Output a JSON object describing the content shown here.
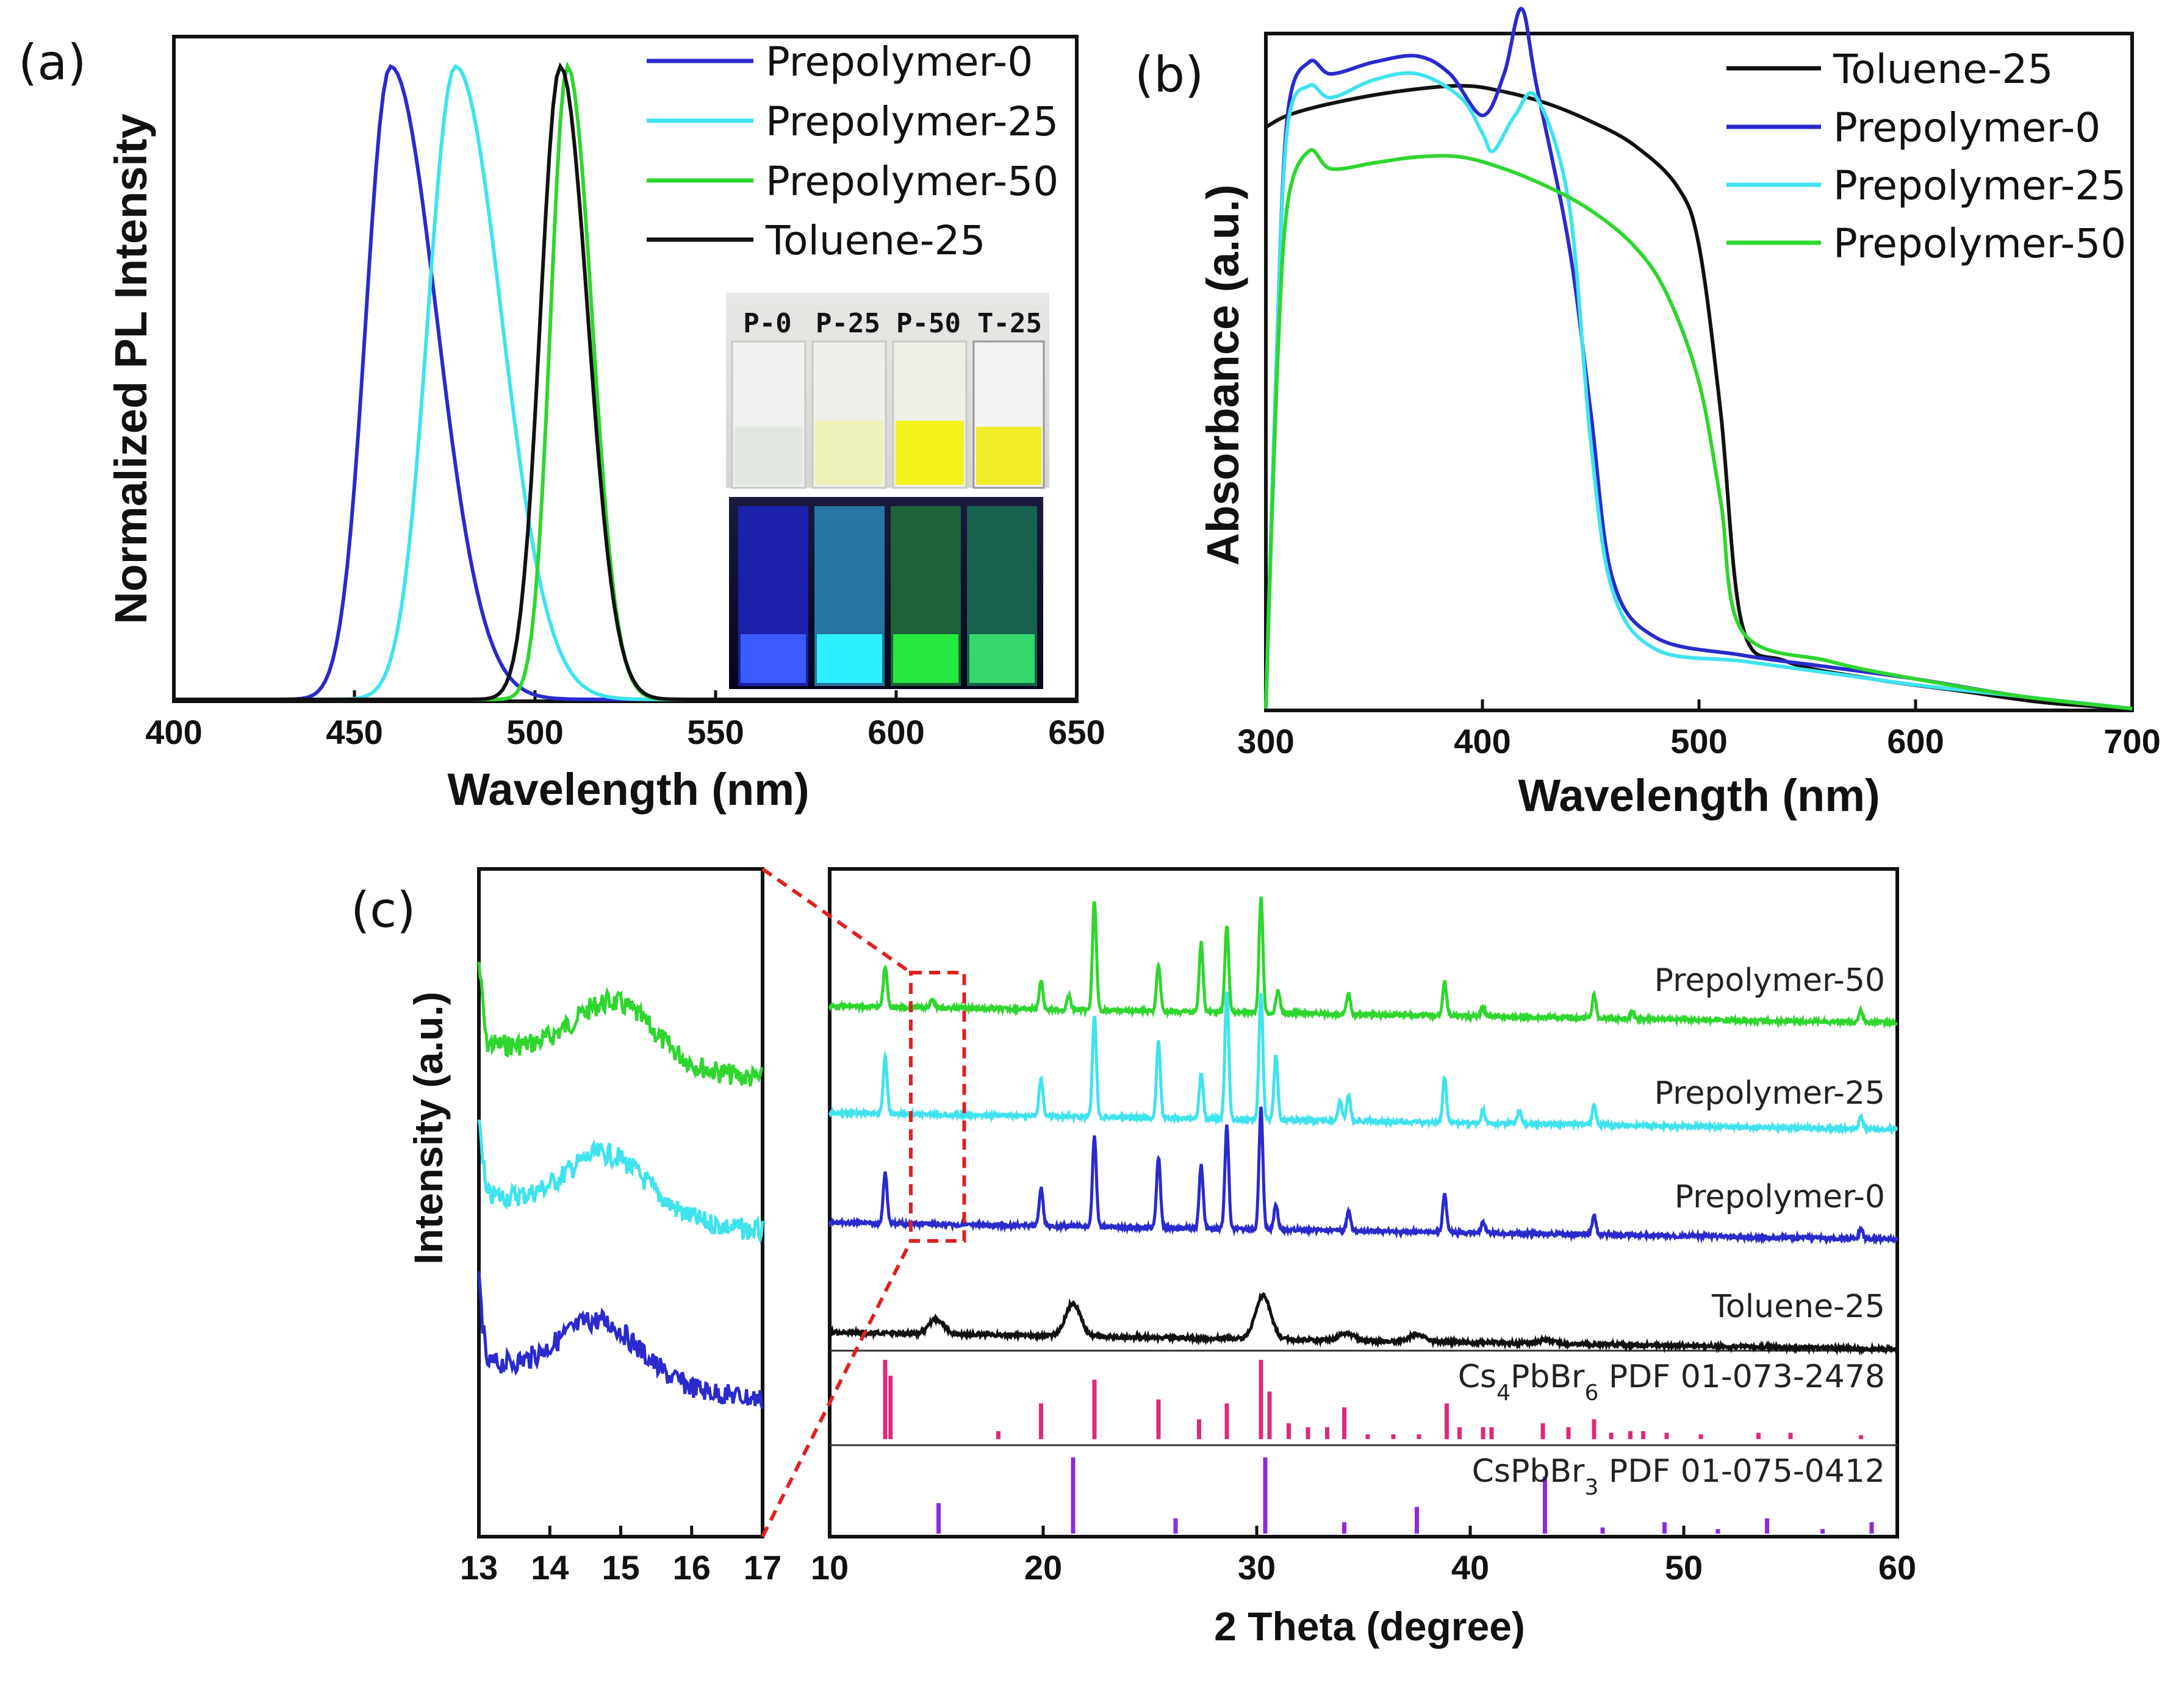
{
  "panel_labels": {
    "a": "(a)",
    "b": "(b)",
    "c": "(c)"
  },
  "colors": {
    "Prepolymer-0": "#2a2acd",
    "Prepolymer-25": "#3fe3ee",
    "Prepolymer-50": "#2ed62e",
    "Toluene-25": "#111111",
    "Cs4PbBr6": "#e0287d",
    "CsPbBr3": "#8a2be2",
    "zoom": "#e02020"
  },
  "chart_data": [
    {
      "id": "a",
      "type": "line",
      "title": "",
      "xlabel": "Wavelength (nm)",
      "ylabel": "Normalized PL Intensity",
      "xlim": [
        400,
        650
      ],
      "ylim": [
        0,
        1.05
      ],
      "xticks": [
        "400",
        "450",
        "500",
        "550",
        "600",
        "650"
      ],
      "series": [
        {
          "name": "Prepolymer-0",
          "peak": 460,
          "fwhm_left": 16,
          "fwhm_right": 30
        },
        {
          "name": "Prepolymer-25",
          "peak": 478,
          "fwhm_left": 18,
          "fwhm_right": 30
        },
        {
          "name": "Prepolymer-50",
          "peak": 509,
          "fwhm_left": 11,
          "fwhm_right": 16
        },
        {
          "name": "Toluene-25",
          "peak": 507,
          "fwhm_left": 13,
          "fwhm_right": 18
        }
      ],
      "legend": [
        "Prepolymer-0",
        "Prepolymer-25",
        "Prepolymer-50",
        "Toluene-25"
      ],
      "inset": {
        "vial_labels": [
          "P-0",
          "P-25",
          "P-50",
          "T-25"
        ]
      }
    },
    {
      "id": "b",
      "type": "line",
      "title": "",
      "xlabel": "Wavelength (nm)",
      "ylabel": "Absorbance (a.u.)",
      "xlim": [
        300,
        700
      ],
      "ylim": [
        0,
        1.1
      ],
      "xticks": [
        "300",
        "400",
        "500",
        "600",
        "700"
      ],
      "series": [
        {
          "name": "Toluene-25",
          "x": [
            300,
            310,
            330,
            360,
            390,
            410,
            430,
            450,
            470,
            490,
            500,
            510,
            520,
            540,
            580,
            620,
            660,
            700
          ],
          "y": [
            0.98,
            1.0,
            1.02,
            1.04,
            1.05,
            1.04,
            1.02,
            0.99,
            0.95,
            0.88,
            0.78,
            0.5,
            0.14,
            0.08,
            0.05,
            0.03,
            0.01,
            0.0
          ]
        },
        {
          "name": "Prepolymer-0",
          "x": [
            300,
            305,
            310,
            320,
            330,
            350,
            370,
            385,
            400,
            410,
            418,
            425,
            440,
            450,
            460,
            480,
            520,
            560,
            600,
            650,
            700
          ],
          "y": [
            0.0,
            0.6,
            1.0,
            1.09,
            1.07,
            1.09,
            1.1,
            1.07,
            1.0,
            1.07,
            1.18,
            1.05,
            0.78,
            0.5,
            0.22,
            0.12,
            0.09,
            0.07,
            0.05,
            0.02,
            0.0
          ]
        },
        {
          "name": "Prepolymer-25",
          "x": [
            300,
            305,
            310,
            320,
            330,
            350,
            370,
            390,
            400,
            405,
            415,
            425,
            440,
            450,
            460,
            480,
            520,
            560,
            600,
            650,
            700
          ],
          "y": [
            0.0,
            0.6,
            0.98,
            1.05,
            1.03,
            1.06,
            1.07,
            1.03,
            0.97,
            0.94,
            1.0,
            1.03,
            0.85,
            0.45,
            0.2,
            0.1,
            0.08,
            0.06,
            0.04,
            0.02,
            0.0
          ]
        },
        {
          "name": "Prepolymer-50",
          "x": [
            300,
            305,
            310,
            320,
            330,
            350,
            370,
            390,
            410,
            430,
            450,
            470,
            485,
            500,
            510,
            520,
            560,
            600,
            650,
            700
          ],
          "y": [
            0.0,
            0.55,
            0.85,
            0.94,
            0.91,
            0.92,
            0.93,
            0.93,
            0.91,
            0.88,
            0.84,
            0.78,
            0.7,
            0.55,
            0.35,
            0.13,
            0.08,
            0.05,
            0.02,
            0.0
          ]
        }
      ],
      "legend": [
        "Toluene-25",
        "Prepolymer-0",
        "Prepolymer-25",
        "Prepolymer-50"
      ]
    },
    {
      "id": "c-zoom",
      "type": "line",
      "title": "",
      "xlabel": "",
      "ylabel": "Intensity (a.u.)",
      "xlim": [
        13,
        17
      ],
      "xticks": [
        "13",
        "14",
        "15",
        "16",
        "17"
      ],
      "series": [
        {
          "name": "Prepolymer-50",
          "peak": 14.9
        },
        {
          "name": "Prepolymer-25",
          "peak": 14.8
        },
        {
          "name": "Prepolymer-0",
          "peak": 14.7
        }
      ]
    },
    {
      "id": "c-main",
      "type": "line",
      "title": "",
      "xlabel": "2 Theta (degree)",
      "ylabel": "",
      "xlim": [
        10,
        60
      ],
      "xticks": [
        "10",
        "20",
        "30",
        "40",
        "50",
        "60"
      ],
      "zoom_box": [
        13.8,
        16.3
      ],
      "series": [
        {
          "name": "Prepolymer-50",
          "label": "Prepolymer-50",
          "peaks": [
            [
              12.6,
              0.35
            ],
            [
              14.8,
              0.08
            ],
            [
              19.9,
              0.25
            ],
            [
              21.2,
              0.12
            ],
            [
              22.4,
              0.95
            ],
            [
              25.4,
              0.4
            ],
            [
              27.4,
              0.6
            ],
            [
              28.6,
              0.75
            ],
            [
              30.2,
              1.0
            ],
            [
              31.0,
              0.2
            ],
            [
              34.3,
              0.18
            ],
            [
              38.8,
              0.3
            ],
            [
              40.6,
              0.08
            ],
            [
              45.8,
              0.2
            ],
            [
              47.6,
              0.06
            ],
            [
              58.3,
              0.1
            ]
          ]
        },
        {
          "name": "Prepolymer-25",
          "label": "Prepolymer-25",
          "peaks": [
            [
              12.6,
              0.45
            ],
            [
              19.9,
              0.3
            ],
            [
              22.4,
              0.8
            ],
            [
              25.4,
              0.6
            ],
            [
              27.4,
              0.35
            ],
            [
              28.6,
              1.0
            ],
            [
              30.2,
              1.0
            ],
            [
              30.9,
              0.5
            ],
            [
              33.9,
              0.15
            ],
            [
              34.3,
              0.2
            ],
            [
              38.8,
              0.35
            ],
            [
              40.6,
              0.1
            ],
            [
              42.3,
              0.1
            ],
            [
              45.8,
              0.15
            ],
            [
              58.3,
              0.1
            ]
          ]
        },
        {
          "name": "Prepolymer-0",
          "label": "Prepolymer-0",
          "peaks": [
            [
              12.6,
              0.4
            ],
            [
              19.9,
              0.3
            ],
            [
              22.4,
              0.7
            ],
            [
              25.4,
              0.55
            ],
            [
              27.4,
              0.5
            ],
            [
              28.6,
              0.8
            ],
            [
              30.2,
              0.95
            ],
            [
              30.9,
              0.2
            ],
            [
              34.3,
              0.15
            ],
            [
              38.8,
              0.3
            ],
            [
              40.6,
              0.08
            ],
            [
              45.8,
              0.15
            ],
            [
              58.3,
              0.08
            ]
          ]
        },
        {
          "name": "Toluene-25",
          "label": "Toluene-25",
          "broad": [
            [
              15.0,
              0.2
            ],
            [
              21.4,
              0.45
            ],
            [
              30.3,
              0.6
            ],
            [
              34.2,
              0.1
            ],
            [
              37.5,
              0.1
            ],
            [
              43.6,
              0.05
            ]
          ]
        }
      ],
      "references": [
        {
          "name": "Cs4PbBr6",
          "label_main": "Cs",
          "sub1": "4",
          "mid": "PbBr",
          "sub2": "6",
          "tail": " PDF 01-073-2478",
          "sticks": [
            [
              12.6,
              1.0
            ],
            [
              12.85,
              0.8
            ],
            [
              17.9,
              0.1
            ],
            [
              19.9,
              0.45
            ],
            [
              22.4,
              0.75
            ],
            [
              25.4,
              0.5
            ],
            [
              27.3,
              0.25
            ],
            [
              28.6,
              0.45
            ],
            [
              30.2,
              1.0
            ],
            [
              30.6,
              0.6
            ],
            [
              31.5,
              0.2
            ],
            [
              32.4,
              0.15
            ],
            [
              33.3,
              0.15
            ],
            [
              34.1,
              0.4
            ],
            [
              35.2,
              0.06
            ],
            [
              36.4,
              0.06
            ],
            [
              37.6,
              0.06
            ],
            [
              38.9,
              0.45
            ],
            [
              39.5,
              0.15
            ],
            [
              40.6,
              0.15
            ],
            [
              41.0,
              0.15
            ],
            [
              43.4,
              0.2
            ],
            [
              44.6,
              0.15
            ],
            [
              45.8,
              0.25
            ],
            [
              46.6,
              0.08
            ],
            [
              47.5,
              0.1
            ],
            [
              48.1,
              0.1
            ],
            [
              49.2,
              0.08
            ],
            [
              50.8,
              0.06
            ],
            [
              53.5,
              0.08
            ],
            [
              55.0,
              0.08
            ],
            [
              58.3,
              0.05
            ]
          ]
        },
        {
          "name": "CsPbBr3",
          "label_main": "CsPbBr",
          "sub1": "",
          "mid": "",
          "sub2": "3",
          "tail": " PDF 01-075-0412",
          "sticks": [
            [
              15.1,
              0.4
            ],
            [
              21.4,
              1.0
            ],
            [
              26.2,
              0.2
            ],
            [
              30.4,
              1.0
            ],
            [
              34.1,
              0.15
            ],
            [
              37.5,
              0.35
            ],
            [
              43.5,
              0.75
            ],
            [
              46.2,
              0.08
            ],
            [
              49.1,
              0.15
            ],
            [
              51.6,
              0.06
            ],
            [
              53.9,
              0.2
            ],
            [
              56.5,
              0.06
            ],
            [
              58.8,
              0.15
            ]
          ]
        }
      ]
    }
  ]
}
